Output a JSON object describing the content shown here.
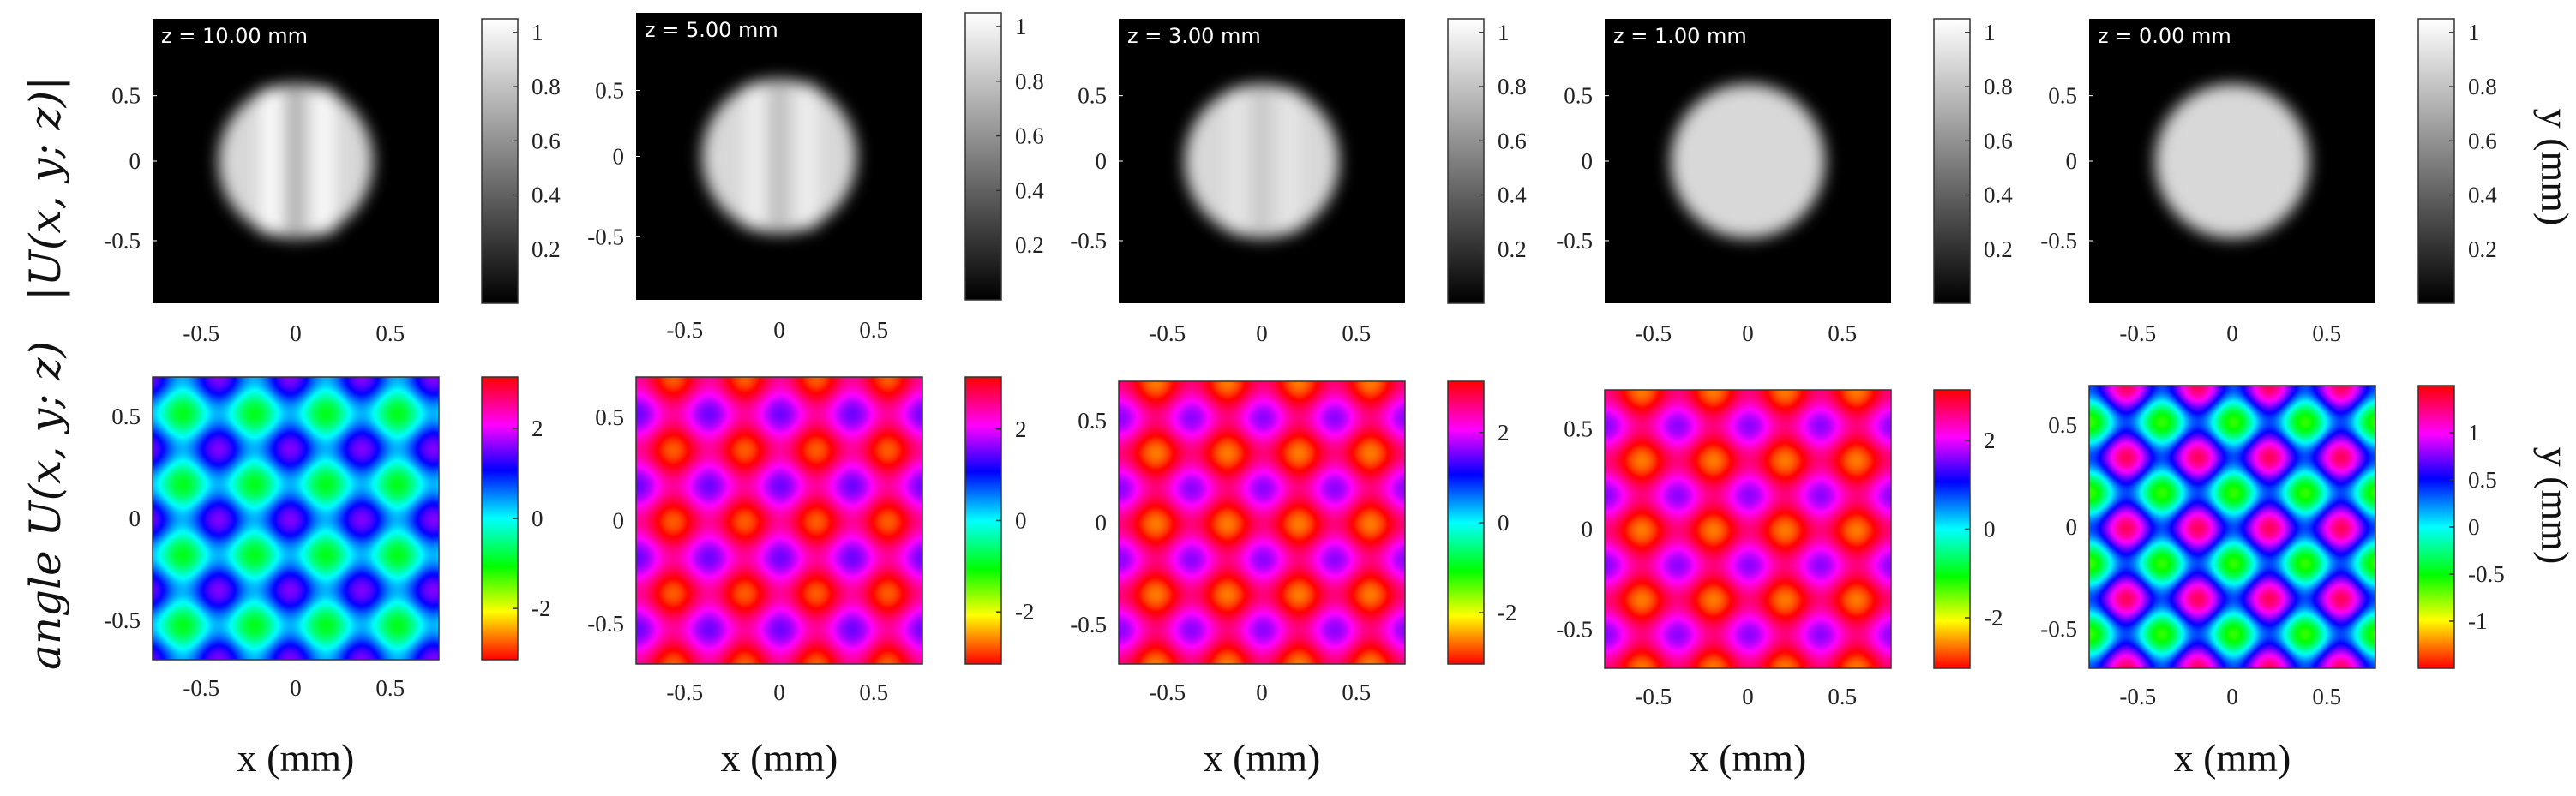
{
  "chart_data": {
    "type": "heatmap",
    "row_labels": [
      "|U(x, y; z)|",
      "angle U(x, y; z)"
    ],
    "ylabel": "y (mm)",
    "xlabel": "x (mm)",
    "x_ticks": [
      "-0.5",
      "0",
      "0.5"
    ],
    "y_ticks": [
      "0.5",
      "0",
      "-0.5"
    ],
    "panels": [
      {
        "z_label": "z = 10.00 mm",
        "amplitude": {
          "range": [
            0,
            1.05
          ],
          "colormap": "gray",
          "cbar_ticks": [
            "1",
            "0.8",
            "0.6",
            "0.4",
            "0.2"
          ]
        },
        "phase": {
          "range": [
            -3.14,
            3.14
          ],
          "colormap": "hsv",
          "cbar_ticks": [
            "2",
            "0",
            "-2"
          ]
        }
      },
      {
        "z_label": "z = 5.00 mm",
        "amplitude": {
          "range": [
            0,
            1.05
          ],
          "colormap": "gray",
          "cbar_ticks": [
            "1",
            "0.8",
            "0.6",
            "0.4",
            "0.2"
          ]
        },
        "phase": {
          "range": [
            -3.14,
            3.14
          ],
          "colormap": "hsv",
          "cbar_ticks": [
            "2",
            "0",
            "-2"
          ]
        }
      },
      {
        "z_label": "z = 3.00 mm",
        "amplitude": {
          "range": [
            0,
            1.05
          ],
          "colormap": "gray",
          "cbar_ticks": [
            "1",
            "0.8",
            "0.6",
            "0.4",
            "0.2"
          ]
        },
        "phase": {
          "range": [
            -3.14,
            3.14
          ],
          "colormap": "hsv",
          "cbar_ticks": [
            "2",
            "0",
            "-2"
          ]
        }
      },
      {
        "z_label": "z = 1.00 mm",
        "amplitude": {
          "range": [
            0,
            1.05
          ],
          "colormap": "gray",
          "cbar_ticks": [
            "1",
            "0.8",
            "0.6",
            "0.4",
            "0.2"
          ]
        },
        "phase": {
          "range": [
            -3.14,
            3.14
          ],
          "colormap": "hsv",
          "cbar_ticks": [
            "2",
            "0",
            "-2"
          ]
        }
      },
      {
        "z_label": "z = 0.00 mm",
        "amplitude": {
          "range": [
            0,
            1.05
          ],
          "colormap": "gray",
          "cbar_ticks": [
            "1",
            "0.8",
            "0.6",
            "0.4",
            "0.2"
          ]
        },
        "phase": {
          "range": [
            -1.5,
            1.5
          ],
          "colormap": "hsv",
          "cbar_ticks": [
            "1",
            "0.5",
            "0",
            "-0.5",
            "-1"
          ]
        }
      }
    ]
  }
}
